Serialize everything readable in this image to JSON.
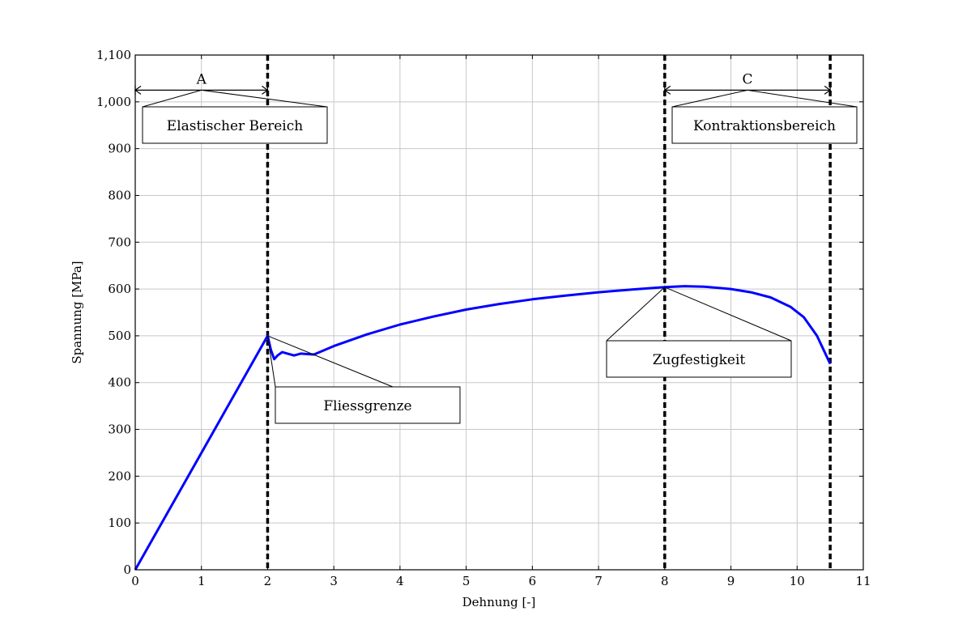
{
  "chart_data": {
    "type": "line",
    "title": "",
    "xlabel": "Dehnung [-]",
    "ylabel": "Spannung [MPa]",
    "xlim": [
      0,
      11
    ],
    "ylim": [
      0,
      1100
    ],
    "grid": true,
    "x_ticks": [
      0,
      1,
      2,
      3,
      4,
      5,
      6,
      7,
      8,
      9,
      10,
      11
    ],
    "x_tick_labels": [
      "0",
      "1",
      "2",
      "3",
      "4",
      "5",
      "6",
      "7",
      "8",
      "9",
      "10",
      "11"
    ],
    "y_ticks": [
      0,
      100,
      200,
      300,
      400,
      500,
      600,
      700,
      800,
      900,
      1000,
      1100
    ],
    "y_tick_labels": [
      "0",
      "100",
      "200",
      "300",
      "400",
      "500",
      "600",
      "700",
      "800",
      "900",
      "1,000",
      "1,100"
    ],
    "series": [
      {
        "color": "#0000ff",
        "points": [
          [
            0,
            0
          ],
          [
            2.0,
            500
          ],
          [
            2.05,
            470
          ],
          [
            2.1,
            450
          ],
          [
            2.15,
            458
          ],
          [
            2.22,
            465
          ],
          [
            2.3,
            462
          ],
          [
            2.4,
            458
          ],
          [
            2.5,
            462
          ],
          [
            2.6,
            461
          ],
          [
            2.7,
            460
          ],
          [
            3.0,
            478
          ],
          [
            3.5,
            503
          ],
          [
            4.0,
            524
          ],
          [
            4.5,
            541
          ],
          [
            5.0,
            556
          ],
          [
            5.5,
            568
          ],
          [
            6.0,
            578
          ],
          [
            6.5,
            586
          ],
          [
            7.0,
            593
          ],
          [
            7.5,
            599
          ],
          [
            8.0,
            604
          ],
          [
            8.3,
            606
          ],
          [
            8.6,
            605
          ],
          [
            9.0,
            600
          ],
          [
            9.3,
            593
          ],
          [
            9.6,
            582
          ],
          [
            9.9,
            562
          ],
          [
            10.1,
            540
          ],
          [
            10.3,
            500
          ],
          [
            10.4,
            470
          ],
          [
            10.5,
            440
          ]
        ]
      }
    ],
    "vertical_lines": [
      2,
      8,
      10.5
    ],
    "ranges": [
      {
        "label": "A",
        "from": 0,
        "to": 2,
        "y": 1025
      },
      {
        "label": "C",
        "from": 8,
        "to": 10.5,
        "y": 1025
      }
    ],
    "annotations": [
      {
        "text": "Elastischer Bereich",
        "anchor": [
          1,
          1025
        ]
      },
      {
        "text": "Kontraktionsbereich",
        "anchor": [
          9.25,
          1025
        ]
      },
      {
        "text": "Fliessgrenze",
        "anchor": [
          2,
          500
        ]
      },
      {
        "text": "Zugfestigkeit",
        "anchor": [
          8,
          604
        ]
      }
    ]
  }
}
